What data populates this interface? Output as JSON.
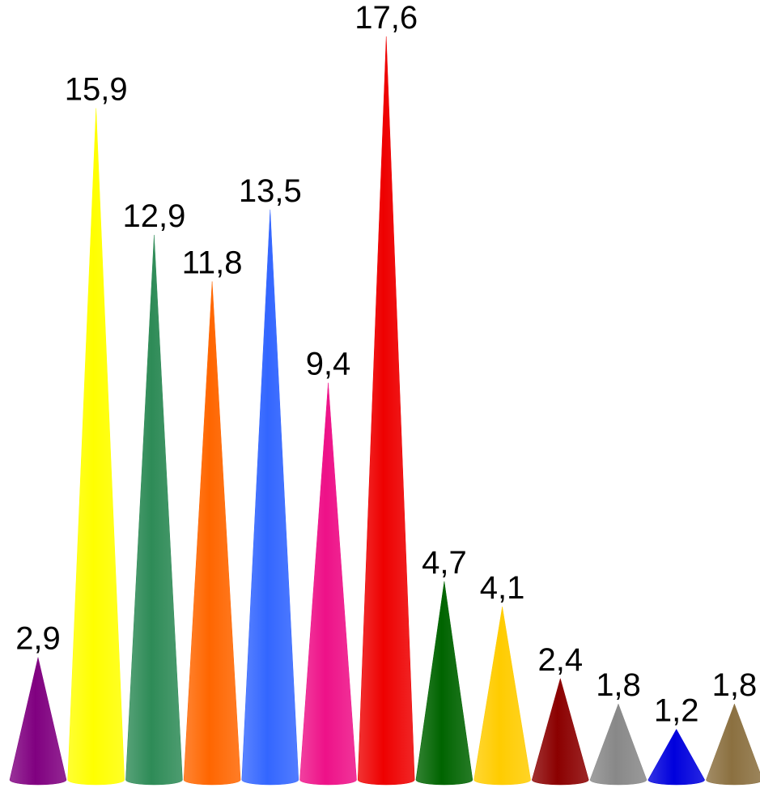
{
  "chart_data": {
    "type": "cone",
    "values": [
      2.9,
      15.9,
      12.9,
      11.8,
      13.5,
      9.4,
      17.6,
      4.7,
      4.1,
      2.4,
      1.8,
      1.2,
      1.8
    ],
    "value_labels": [
      "2,9",
      "15,9",
      "12,9",
      "11,8",
      "13,5",
      "9,4",
      "17,6",
      "4,7",
      "4,1",
      "2,4",
      "1,8",
      "1,2",
      "1,8"
    ],
    "colors": [
      "#800080",
      "#ffff00",
      "#2e8b57",
      "#ff6600",
      "#3366ff",
      "#ee1188",
      "#ee0000",
      "#006400",
      "#ffcc00",
      "#8b0000",
      "#888888",
      "#0000dd",
      "#8b7040"
    ]
  }
}
